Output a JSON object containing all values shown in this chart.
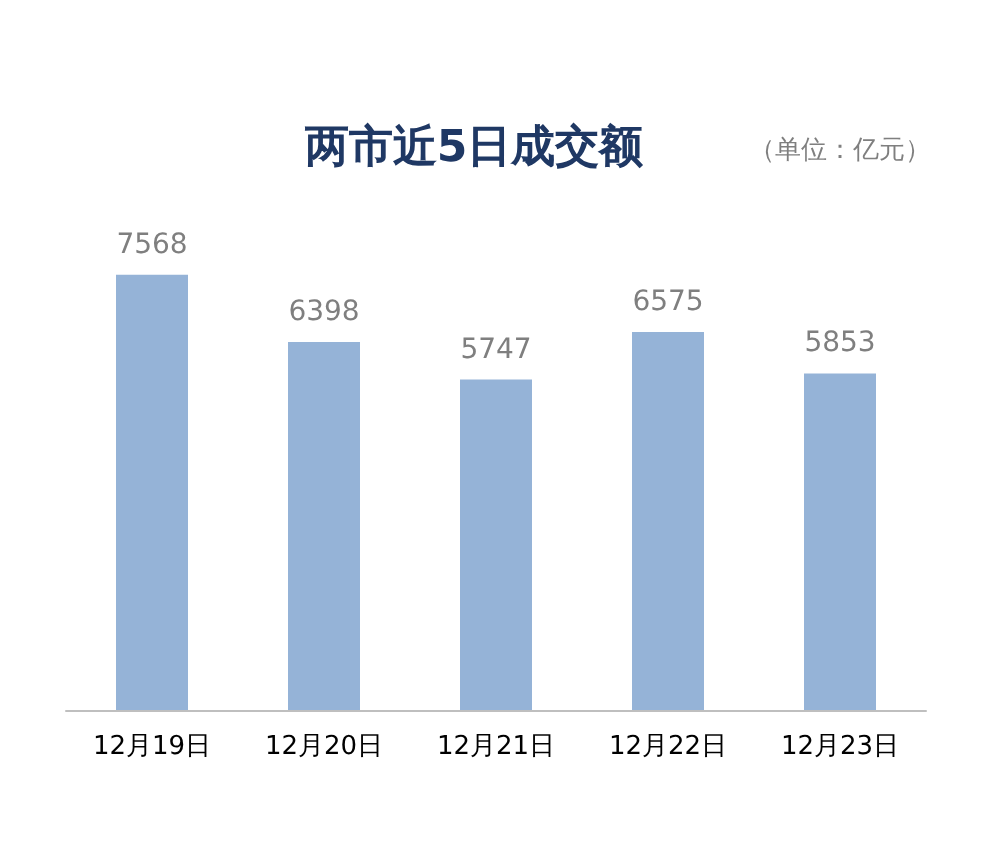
{
  "chart_data": {
    "type": "bar",
    "title": "两市近5日成交额",
    "subtitle": "（单位：亿元）",
    "categories": [
      "12月19日",
      "12月20日",
      "12月21日",
      "12月22日",
      "12月23日"
    ],
    "values": [
      7568,
      6398,
      5747,
      6575,
      5853
    ],
    "color": "#95b3d7",
    "data_labels": true
  }
}
